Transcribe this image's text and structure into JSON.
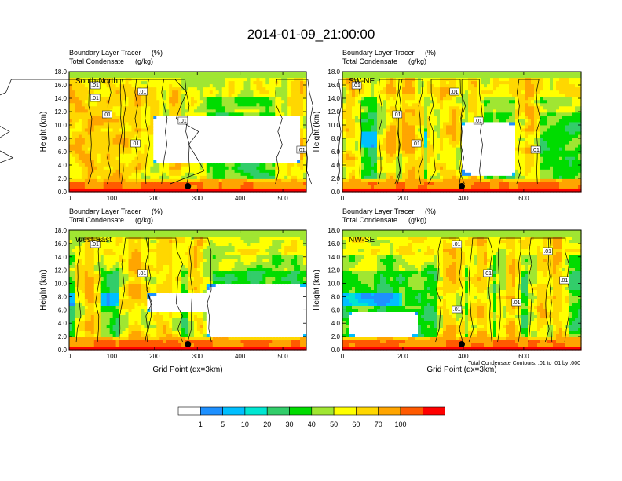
{
  "title": "2014-01-09_21:00:00",
  "chart_data": {
    "type": "heatmap",
    "colorbar": {
      "colors": [
        "#ffffff",
        "#1e90ff",
        "#00bfff",
        "#00e6d2",
        "#32cd6a",
        "#00dc00",
        "#a0e632",
        "#ffff00",
        "#ffd700",
        "#ffa500",
        "#ff5a00",
        "#ff0000"
      ],
      "tick_labels": [
        "1",
        "5",
        "10",
        "20",
        "30",
        "40",
        "50",
        "60",
        "70",
        "100"
      ]
    },
    "contour_note": "Total Condensate Contours: .01 to .01 by .000",
    "panels": [
      {
        "label": "South-North",
        "subtitle_left": "Boundary Layer Tracer",
        "subtitle_pct": "(%)",
        "subtitle2_left": "Total Condensate",
        "subtitle2_unit": "(g/kg)",
        "ylabel": "Height (km)",
        "xlabel": "",
        "xlim": [
          0,
          555
        ],
        "ylim": [
          0,
          18
        ],
        "xticks": [
          "0",
          "100",
          "200",
          "300",
          "400",
          "500"
        ],
        "xtick_values": [
          0,
          100,
          200,
          300,
          400,
          500
        ],
        "yticks": [
          "0.0",
          "2.0",
          "4.0",
          "6.0",
          "8.0",
          "10.0",
          "12.0",
          "14.0",
          "16.0",
          "18.0"
        ],
        "contour_labels": [
          ".01",
          ".01",
          ".01",
          ".01",
          ".01",
          ".01",
          ".01"
        ],
        "marker_x": 278
      },
      {
        "label": "SW-NE",
        "subtitle_left": "Boundary Layer Tracer",
        "subtitle_pct": "(%)",
        "subtitle2_left": "Total Condensate",
        "subtitle2_unit": "(g/kg)",
        "ylabel": "Height (km)",
        "xlabel": "",
        "xlim": [
          0,
          790
        ],
        "ylim": [
          0,
          18
        ],
        "xticks": [
          "0",
          "200",
          "400",
          "600"
        ],
        "xtick_values": [
          0,
          200,
          400,
          600
        ],
        "yticks": [
          "0.0",
          "2.0",
          "4.0",
          "6.0",
          "8.0",
          "10.0",
          "12.0",
          "14.0",
          "16.0",
          "18.0"
        ],
        "contour_labels": [
          ".01",
          ".01",
          ".01",
          ".01",
          ".01",
          ".01"
        ],
        "marker_x": 395
      },
      {
        "label": "West-East",
        "subtitle_left": "Boundary Layer Tracer",
        "subtitle_pct": "(%)",
        "subtitle2_left": "Total Condensate",
        "subtitle2_unit": "(g/kg)",
        "ylabel": "Height (km)",
        "xlabel": "Grid Point (dx=3km)",
        "xlim": [
          0,
          555
        ],
        "ylim": [
          0,
          18
        ],
        "xticks": [
          "0",
          "100",
          "200",
          "300",
          "400",
          "500"
        ],
        "xtick_values": [
          0,
          100,
          200,
          300,
          400,
          500
        ],
        "yticks": [
          "0.0",
          "2.0",
          "4.0",
          "6.0",
          "8.0",
          "10.0",
          "12.0",
          "14.0",
          "16.0",
          "18.0"
        ],
        "contour_labels": [
          ".01",
          ".01"
        ],
        "marker_x": 278
      },
      {
        "label": "NW-SE",
        "subtitle_left": "Boundary Layer Tracer",
        "subtitle_pct": "(%)",
        "subtitle2_left": "Total Condensate",
        "subtitle2_unit": "(g/kg)",
        "ylabel": "Height (km)",
        "xlabel": "Grid Point (dx=3km)",
        "xlim": [
          0,
          790
        ],
        "ylim": [
          0,
          18
        ],
        "xticks": [
          "0",
          "200",
          "400",
          "600"
        ],
        "xtick_values": [
          0,
          200,
          400,
          600
        ],
        "yticks": [
          "0.0",
          "2.0",
          "4.0",
          "6.0",
          "8.0",
          "10.0",
          "12.0",
          "14.0",
          "16.0",
          "18.0"
        ],
        "contour_labels": [
          ".01",
          ".01",
          ".01",
          ".01",
          ".01",
          ".01"
        ],
        "marker_x": 395
      }
    ]
  }
}
